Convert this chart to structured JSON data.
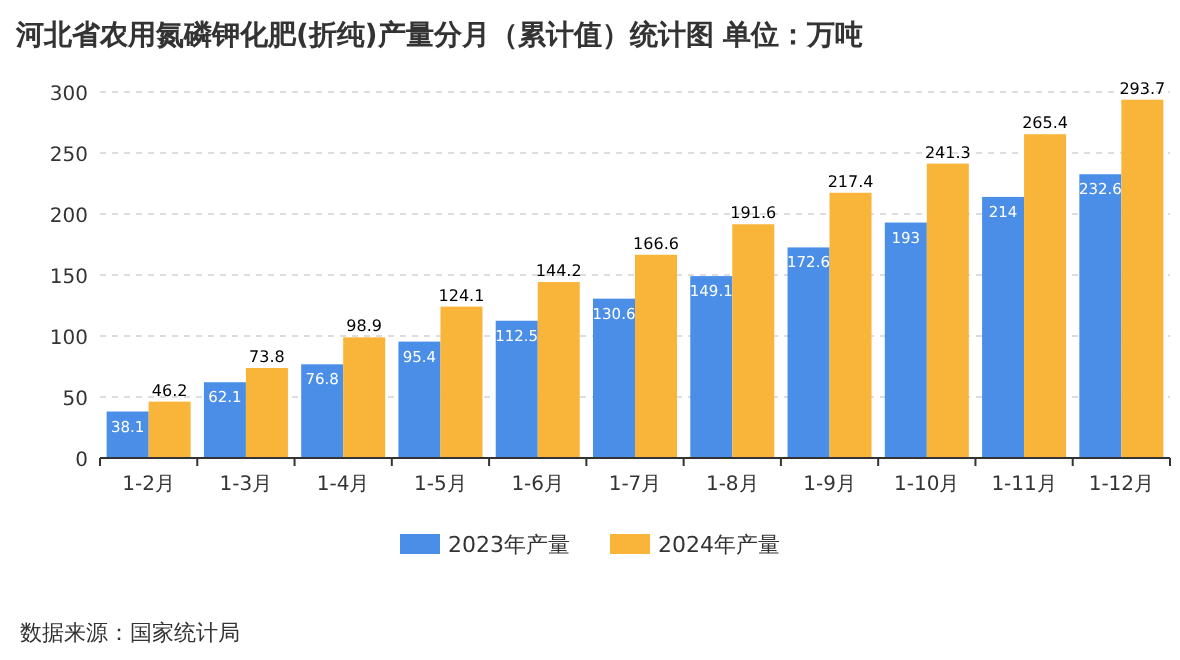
{
  "chart_data": {
    "type": "bar",
    "title": "河北省农用氮磷钾化肥(折纯)产量分月（累计值）统计图 单位：万吨",
    "categories": [
      "1-2月",
      "1-3月",
      "1-4月",
      "1-5月",
      "1-6月",
      "1-7月",
      "1-8月",
      "1-9月",
      "1-10月",
      "1-11月",
      "1-12月"
    ],
    "series": [
      {
        "name": "2023年产量",
        "color": "#4a8ee8",
        "values": [
          38.1,
          62.1,
          76.8,
          95.4,
          112.5,
          130.6,
          149.1,
          172.6,
          193,
          214,
          232.6
        ]
      },
      {
        "name": "2024年产量",
        "color": "#f9b43a",
        "values": [
          46.2,
          73.8,
          98.9,
          124.1,
          144.2,
          166.6,
          191.6,
          217.4,
          241.3,
          265.4,
          293.7
        ]
      }
    ],
    "ylim": [
      0,
      300
    ],
    "yticks": [
      0,
      50,
      100,
      150,
      200,
      250,
      300
    ],
    "grid": "y",
    "legend": "bottom",
    "data_labels": true,
    "annotations": [
      "数据来源：国家统计局"
    ]
  }
}
